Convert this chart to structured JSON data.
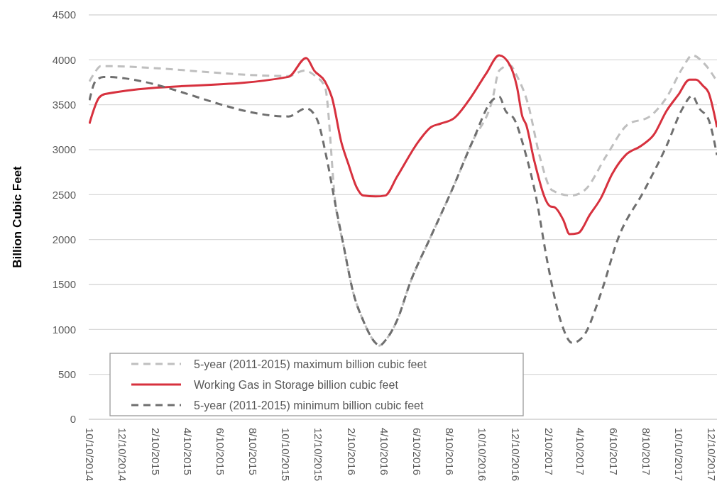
{
  "chart_data": {
    "type": "line",
    "ylabel": "Billion Cubic Feet",
    "xlim": [
      "2014-10-10",
      "2017-12-20"
    ],
    "xticks": [
      {
        "value": "2014-10-10",
        "label": "10/10/2014"
      },
      {
        "value": "2014-12-10",
        "label": "12/10/2014"
      },
      {
        "value": "2015-02-10",
        "label": "2/10/2015"
      },
      {
        "value": "2015-04-10",
        "label": "4/10/2015"
      },
      {
        "value": "2015-06-10",
        "label": "6/10/2015"
      },
      {
        "value": "2015-08-10",
        "label": "8/10/2015"
      },
      {
        "value": "2015-10-10",
        "label": "10/10/2015"
      },
      {
        "value": "2015-12-10",
        "label": "12/10/2015"
      },
      {
        "value": "2016-02-10",
        "label": "2/10/2016"
      },
      {
        "value": "2016-04-10",
        "label": "4/10/2016"
      },
      {
        "value": "2016-06-10",
        "label": "6/10/2016"
      },
      {
        "value": "2016-08-10",
        "label": "8/10/2016"
      },
      {
        "value": "2016-10-10",
        "label": "10/10/2016"
      },
      {
        "value": "2016-12-10",
        "label": "12/10/2016"
      },
      {
        "value": "2017-02-10",
        "label": "2/10/2017"
      },
      {
        "value": "2017-04-10",
        "label": "4/10/2017"
      },
      {
        "value": "2017-06-10",
        "label": "6/10/2017"
      },
      {
        "value": "2017-08-10",
        "label": "8/10/2017"
      },
      {
        "value": "2017-10-10",
        "label": "10/10/2017"
      },
      {
        "value": "2017-12-10",
        "label": "12/10/2017"
      }
    ],
    "ylim": [
      0,
      4500
    ],
    "yticks": [
      0,
      500,
      1000,
      1500,
      2000,
      2500,
      3000,
      3500,
      4000,
      4500
    ],
    "grid": "y",
    "legend": "bottom left",
    "series": [
      {
        "name": "5-year (2011-2015) maximum billion cubic feet",
        "color": "#bfbfbf",
        "line_style": "dashed",
        "x": [
          "2014-10-10",
          "2014-10-19",
          "2014-10-31",
          "2015-10-15",
          "2015-11-14",
          "2015-12-04",
          "2015-12-22",
          "2016-01-11",
          "2016-01-25",
          "2016-02-13",
          "2016-03-02",
          "2016-03-25",
          "2016-04-01",
          "2016-04-14",
          "2016-05-04",
          "2016-05-29",
          "2016-07-04",
          "2016-08-14",
          "2016-09-22",
          "2016-10-28",
          "2016-11-10",
          "2016-11-30",
          "2016-12-13",
          "2017-01-02",
          "2017-01-25",
          "2017-02-16",
          "2017-03-24",
          "2017-04-18",
          "2017-05-29",
          "2017-07-07",
          "2017-08-17",
          "2017-09-17",
          "2017-10-17",
          "2017-11-04",
          "2017-11-26",
          "2017-12-20"
        ],
        "values": [
          3760,
          3850,
          3930,
          3820,
          3880,
          3820,
          3700,
          2370,
          1950,
          1400,
          1100,
          850,
          820,
          890,
          1100,
          1530,
          2010,
          2550,
          3100,
          3550,
          3880,
          3940,
          3820,
          3520,
          2910,
          2550,
          2490,
          2550,
          2940,
          3280,
          3370,
          3580,
          3910,
          4050,
          3960,
          3760
        ]
      },
      {
        "name": "Working Gas in Storage billion cubic feet",
        "color": "#d7313e",
        "line_style": "solid",
        "x": [
          "2014-10-10",
          "2014-10-28",
          "2014-11-08",
          "2015-10-15",
          "2015-11-17",
          "2015-12-02",
          "2015-12-22",
          "2016-01-04",
          "2016-01-22",
          "2016-02-03",
          "2016-02-19",
          "2016-03-02",
          "2016-03-25",
          "2016-04-12",
          "2016-05-04",
          "2016-06-14",
          "2016-07-06",
          "2016-07-24",
          "2016-08-18",
          "2016-09-18",
          "2016-10-17",
          "2016-11-10",
          "2016-11-30",
          "2016-12-13",
          "2016-12-23",
          "2016-12-30",
          "2017-01-14",
          "2017-02-13",
          "2017-02-21",
          "2017-03-09",
          "2017-03-21",
          "2017-04-05",
          "2017-04-28",
          "2017-05-18",
          "2017-06-08",
          "2017-07-03",
          "2017-07-31",
          "2017-08-25",
          "2017-09-17",
          "2017-10-09",
          "2017-10-30",
          "2017-11-11",
          "2017-11-24",
          "2017-12-04",
          "2017-12-20"
        ],
        "values": [
          3290,
          3580,
          3620,
          3810,
          4020,
          3880,
          3760,
          3580,
          3070,
          2850,
          2580,
          2490,
          2480,
          2490,
          2700,
          3100,
          3250,
          3290,
          3350,
          3580,
          3850,
          4050,
          3940,
          3700,
          3370,
          3280,
          2880,
          2370,
          2360,
          2220,
          2060,
          2070,
          2280,
          2460,
          2730,
          2940,
          3040,
          3170,
          3430,
          3610,
          3780,
          3780,
          3710,
          3640,
          3250
        ]
      },
      {
        "name": "5-year (2011-2015) minimum billion cubic feet",
        "color": "#6f6f6f",
        "line_style": "dashed",
        "x": [
          "2014-10-10",
          "2014-10-21",
          "2014-11-05",
          "2015-10-15",
          "2015-11-17",
          "2015-12-07",
          "2015-12-25",
          "2016-01-11",
          "2016-01-25",
          "2016-02-13",
          "2016-03-02",
          "2016-03-25",
          "2016-04-01",
          "2016-04-14",
          "2016-05-04",
          "2016-05-29",
          "2016-07-04",
          "2016-08-14",
          "2016-09-22",
          "2016-10-28",
          "2016-11-10",
          "2016-11-22",
          "2016-12-08",
          "2016-12-28",
          "2017-01-17",
          "2017-02-07",
          "2017-03-04",
          "2017-03-26",
          "2017-04-15",
          "2017-05-18",
          "2017-06-19",
          "2017-08-07",
          "2017-09-17",
          "2017-10-17",
          "2017-11-04",
          "2017-11-17",
          "2017-12-04",
          "2017-12-20"
        ],
        "values": [
          3550,
          3760,
          3810,
          3370,
          3460,
          3340,
          2910,
          2370,
          1950,
          1400,
          1100,
          850,
          820,
          890,
          1100,
          1530,
          2010,
          2550,
          3100,
          3550,
          3590,
          3430,
          3340,
          2980,
          2490,
          1770,
          1100,
          850,
          920,
          1400,
          2010,
          2550,
          3040,
          3460,
          3600,
          3460,
          3340,
          2940
        ]
      }
    ]
  }
}
